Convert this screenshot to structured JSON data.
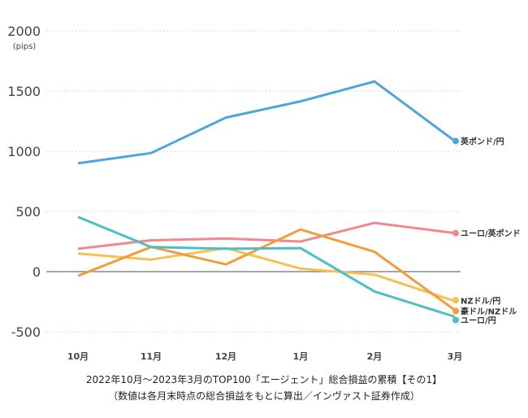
{
  "chart_data": {
    "type": "line",
    "title": "2022年10月～2023年3月のTOP100「エージェント」総合損益の累積【その1】",
    "subtitle": "（数値は各月末時点の総合損益をもとに算出／インヴァスト証券作成）",
    "ylabel": "(pips)",
    "xlabel": "",
    "categories": [
      "10月",
      "11月",
      "12月",
      "1月",
      "2月",
      "3月"
    ],
    "ylim": [
      -500,
      2000
    ],
    "yticks": [
      "2000",
      "1500",
      "1000",
      "500",
      "0",
      "-500"
    ],
    "ytick_values": [
      2000,
      1500,
      1000,
      500,
      0,
      -500
    ],
    "grid": true,
    "legend": "right-end labels",
    "series": [
      {
        "name": "英ポンド/円",
        "color": "#4aa6dc",
        "values": [
          900,
          985,
          1280,
          1415,
          1580,
          1085
        ]
      },
      {
        "name": "ユーロ/英ポンド",
        "color": "#f2888f",
        "values": [
          190,
          260,
          275,
          250,
          405,
          320
        ]
      },
      {
        "name": "NZドル/円",
        "color": "#f7c052",
        "values": [
          150,
          100,
          195,
          25,
          -25,
          -245
        ]
      },
      {
        "name": "豪ドル/NZドル",
        "color": "#f39c3a",
        "values": [
          -35,
          205,
          60,
          350,
          165,
          -320
        ]
      },
      {
        "name": "ユーロ/円",
        "color": "#4bbfc4",
        "values": [
          455,
          205,
          190,
          195,
          -165,
          -375
        ]
      }
    ]
  }
}
